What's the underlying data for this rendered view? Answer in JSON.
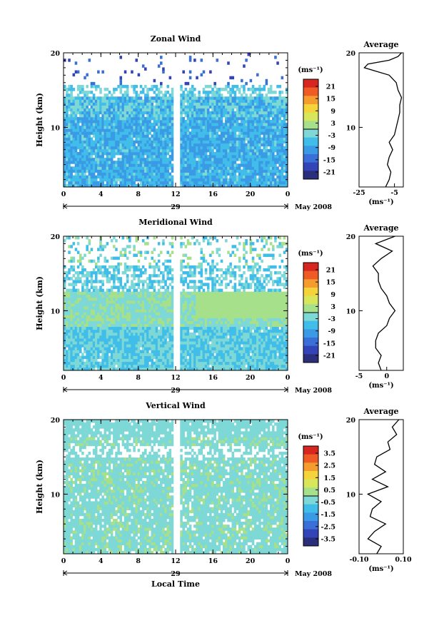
{
  "month_label": "May 2008",
  "day_label": "29",
  "xlabel": "Local Time",
  "ylabel": "Height (km)",
  "colorbar_unit": "(ms⁻¹)",
  "profile_title": "Average",
  "profile_unit": "(ms⁻¹)",
  "x_ticks": [
    "0",
    "4",
    "8",
    "12",
    "16",
    "20",
    "0"
  ],
  "y_ticks": [
    "10",
    "20"
  ],
  "colorscale": [
    "#2b2e7a",
    "#3344b8",
    "#3a6fd8",
    "#3b9ae6",
    "#40bde8",
    "#7dd8d6",
    "#a6e08a",
    "#d7e65a",
    "#f4d33b",
    "#f59c2e",
    "#ef5b24",
    "#d7261f"
  ],
  "chart_data": [
    {
      "type": "heatmap",
      "title": "Zonal Wind",
      "xlabel": "",
      "ylabel": "Height (km)",
      "xlim": [
        0,
        24
      ],
      "ylim": [
        2,
        20
      ],
      "colorbar_ticks": [
        "21",
        "15",
        "9",
        "3",
        "-3",
        "-9",
        "-15",
        "-21"
      ],
      "colorbar_range": [
        -24,
        24
      ],
      "profile": {
        "xlim": [
          -25,
          0
        ],
        "xticks": [
          "-25",
          "-5"
        ],
        "heights": [
          2,
          3,
          4,
          5,
          6,
          7,
          8,
          9,
          10,
          11,
          12,
          13,
          14,
          15,
          16,
          17,
          17.5,
          18,
          18.5,
          19,
          19.5,
          20
        ],
        "values": [
          -10,
          -8,
          -7,
          -9,
          -8,
          -6,
          -8,
          -5,
          -4,
          -3,
          -2,
          -2,
          -1,
          -3,
          -4,
          -8,
          -15,
          -22,
          -20,
          -8,
          -3,
          -1
        ]
      }
    },
    {
      "type": "heatmap",
      "title": "Meridional Wind",
      "xlabel": "",
      "ylabel": "Height (km)",
      "xlim": [
        0,
        24
      ],
      "ylim": [
        2,
        20
      ],
      "colorbar_ticks": [
        "21",
        "15",
        "9",
        "3",
        "-3",
        "-9",
        "-15",
        "-21"
      ],
      "colorbar_range": [
        -24,
        24
      ],
      "profile": {
        "xlim": [
          -5,
          3
        ],
        "xticks": [
          "-5",
          "0"
        ],
        "heights": [
          2,
          3,
          4,
          5,
          6,
          7,
          8,
          9,
          10,
          11,
          12,
          13,
          14,
          15,
          16,
          17,
          18,
          19,
          20
        ],
        "values": [
          -1,
          -1.5,
          -1,
          -2,
          -2,
          -1.5,
          0,
          0.5,
          1.5,
          0.5,
          0,
          -1,
          -1.5,
          -1.5,
          -2.5,
          -1,
          1,
          -2,
          1.5
        ]
      }
    },
    {
      "type": "heatmap",
      "title": "Vertical Wind",
      "xlabel": "Local Time",
      "ylabel": "Height (km)",
      "xlim": [
        0,
        24
      ],
      "ylim": [
        2,
        20
      ],
      "colorbar_ticks": [
        "3.5",
        "2.5",
        "1.5",
        "0.5",
        "-0.5",
        "-1.5",
        "-2.5",
        "-3.5"
      ],
      "colorbar_range": [
        -4,
        4
      ],
      "profile": {
        "xlim": [
          -0.1,
          0.1
        ],
        "xticks": [
          "-0.10",
          "0.10"
        ],
        "heights": [
          2,
          3,
          4,
          5,
          6,
          7,
          8,
          9,
          10,
          11,
          12,
          13,
          14,
          15,
          16,
          17,
          18,
          19,
          20
        ],
        "values": [
          -0.02,
          0.0,
          -0.06,
          -0.03,
          0.02,
          -0.05,
          -0.04,
          0.0,
          -0.06,
          0.03,
          -0.04,
          0.02,
          -0.03,
          -0.02,
          0.04,
          0.03,
          0.07,
          0.05,
          0.08
        ]
      }
    }
  ]
}
